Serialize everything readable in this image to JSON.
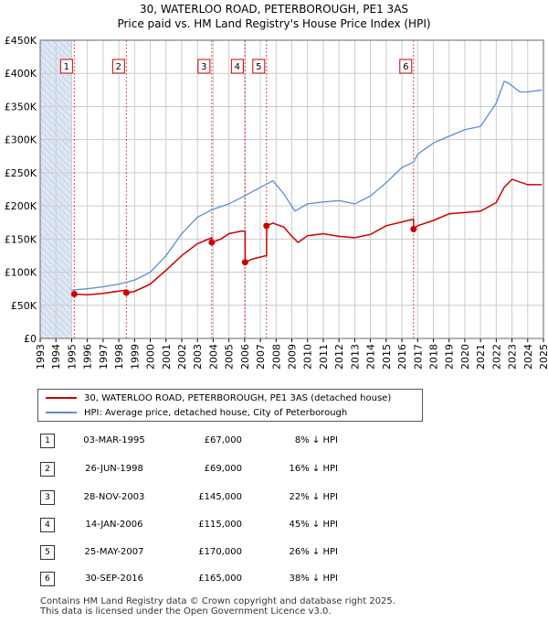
{
  "title_line1": "30, WATERLOO ROAD, PETERBOROUGH, PE1 3AS",
  "title_line2": "Price paid vs. HM Land Registry's House Price Index (HPI)",
  "legend": {
    "red_label": "30, WATERLOO ROAD, PETERBOROUGH, PE1 3AS (detached house)",
    "blue_label": "HPI: Average price, detached house, City of Peterborough"
  },
  "colors": {
    "red": "#cc0000",
    "blue": "#5b8fd0",
    "shade": "#dde6f3",
    "grid": "#cccccc"
  },
  "transactions": [
    {
      "n": "1",
      "date": "03-MAR-1995",
      "price": "£67,000",
      "hpi": "8% ↓ HPI"
    },
    {
      "n": "2",
      "date": "26-JUN-1998",
      "price": "£69,000",
      "hpi": "16% ↓ HPI"
    },
    {
      "n": "3",
      "date": "28-NOV-2003",
      "price": "£145,000",
      "hpi": "22% ↓ HPI"
    },
    {
      "n": "4",
      "date": "14-JAN-2006",
      "price": "£115,000",
      "hpi": "45% ↓ HPI"
    },
    {
      "n": "5",
      "date": "25-MAY-2007",
      "price": "£170,000",
      "hpi": "26% ↓ HPI"
    },
    {
      "n": "6",
      "date": "30-SEP-2016",
      "price": "£165,000",
      "hpi": "38% ↓ HPI"
    }
  ],
  "footer_line1": "Contains HM Land Registry data © Crown copyright and database right 2025.",
  "footer_line2": "This data is licensed under the Open Government Licence v3.0.",
  "chart_data": {
    "type": "line",
    "xlim": [
      1993,
      2025
    ],
    "ylim": [
      0,
      450000
    ],
    "x_ticks": [
      1993,
      1994,
      1995,
      1996,
      1997,
      1998,
      1999,
      2000,
      2001,
      2002,
      2003,
      2004,
      2005,
      2006,
      2007,
      2008,
      2009,
      2010,
      2011,
      2012,
      2013,
      2014,
      2015,
      2016,
      2017,
      2018,
      2019,
      2020,
      2021,
      2022,
      2023,
      2024,
      2025
    ],
    "y_ticks": [
      {
        "v": 0,
        "label": "£0"
      },
      {
        "v": 50000,
        "label": "£50K"
      },
      {
        "v": 100000,
        "label": "£100K"
      },
      {
        "v": 150000,
        "label": "£150K"
      },
      {
        "v": 200000,
        "label": "£200K"
      },
      {
        "v": 250000,
        "label": "£250K"
      },
      {
        "v": 300000,
        "label": "£300K"
      },
      {
        "v": 350000,
        "label": "£350K"
      },
      {
        "v": 400000,
        "label": "£400K"
      },
      {
        "v": 450000,
        "label": "£450K"
      }
    ],
    "shaded_before": 1995,
    "series": [
      {
        "name": "30, WATERLOO ROAD, PETERBOROUGH, PE1 3AS (detached house)",
        "x": [
          1995.17,
          1996,
          1997,
          1998.48,
          1998.49,
          1999,
          2000,
          2001,
          2002,
          2003,
          2003.91,
          2003.92,
          2004.5,
          2005,
          2005.8,
          2006.03,
          2006.04,
          2006.5,
          2007.39,
          2007.4,
          2007.8,
          2008.5,
          2009,
          2009.4,
          2010,
          2011,
          2012,
          2013,
          2014,
          2015,
          2016.74,
          2016.75,
          2017,
          2018,
          2019,
          2020,
          2021,
          2022,
          2022.5,
          2023,
          2024,
          2024.9
        ],
        "y": [
          67000,
          66000,
          68000,
          73000,
          69000,
          71000,
          82000,
          103000,
          125000,
          143000,
          152000,
          145000,
          150000,
          158000,
          162000,
          162000,
          115000,
          120000,
          125000,
          170000,
          174000,
          168000,
          154000,
          145000,
          155000,
          158000,
          154000,
          152000,
          157000,
          170000,
          180000,
          165000,
          170000,
          178000,
          188000,
          190000,
          192000,
          205000,
          228000,
          240000,
          232000,
          232000
        ]
      },
      {
        "name": "HPI: Average price, detached house, City of Peterborough",
        "x": [
          1993.0,
          1994,
          1995,
          1996,
          1997,
          1998,
          1999,
          2000,
          2001,
          2002,
          2003,
          2004,
          2005,
          2006,
          2007,
          2007.8,
          2008.5,
          2009.2,
          2010,
          2011,
          2012,
          2013,
          2014,
          2015,
          2016,
          2016.75,
          2017,
          2018,
          2019,
          2020,
          2021,
          2022,
          2022.5,
          2022.8,
          2023.5,
          2024,
          2024.9
        ],
        "y": [
          null,
          null,
          73000,
          75000,
          78000,
          82000,
          88000,
          100000,
          125000,
          158000,
          183000,
          195000,
          203000,
          215000,
          228000,
          238000,
          218000,
          192000,
          203000,
          206000,
          208000,
          203000,
          215000,
          235000,
          258000,
          266000,
          278000,
          295000,
          305000,
          315000,
          320000,
          355000,
          388000,
          385000,
          372000,
          372000,
          375000
        ]
      }
    ],
    "sale_points": [
      {
        "n": "1",
        "x": 1995.17,
        "y": 67000
      },
      {
        "n": "2",
        "x": 1998.48,
        "y": 69000
      },
      {
        "n": "3",
        "x": 2003.91,
        "y": 145000
      },
      {
        "n": "4",
        "x": 2006.03,
        "y": 115000
      },
      {
        "n": "5",
        "x": 2007.39,
        "y": 170000
      },
      {
        "n": "6",
        "x": 2016.74,
        "y": 165000
      }
    ]
  }
}
